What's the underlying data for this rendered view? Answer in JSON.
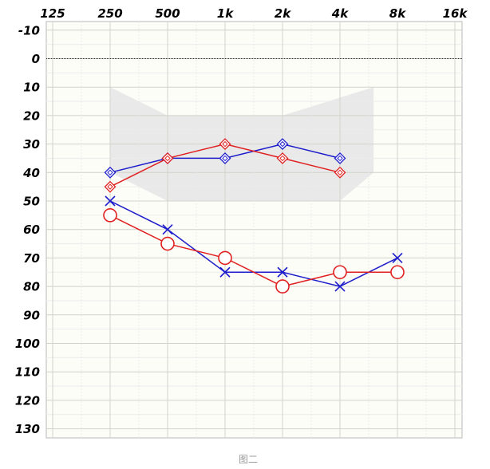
{
  "chart_data": {
    "type": "line",
    "caption": "图二",
    "x_scale": "log2",
    "x_ticks": [
      125,
      250,
      500,
      1000,
      2000,
      4000,
      8000,
      16000
    ],
    "x_tick_labels": [
      "125",
      "250",
      "500",
      "1k",
      "2k",
      "4k",
      "8k",
      "16k"
    ],
    "y_ticks": [
      -10,
      0,
      10,
      20,
      30,
      40,
      50,
      60,
      70,
      80,
      90,
      100,
      110,
      120,
      130
    ],
    "y_tick_labels": [
      "-10",
      "0",
      "10",
      "20",
      "30",
      "40",
      "50",
      "60",
      "70",
      "80",
      "90",
      "100",
      "110",
      "120",
      "130"
    ],
    "ylim": [
      -10,
      130
    ],
    "y_inverted": true,
    "xlim": [
      125,
      16000
    ],
    "grid": true,
    "reference_line_y": 0,
    "shaded_region": [
      {
        "x": 250,
        "y": 10
      },
      {
        "x": 500,
        "y": 20
      },
      {
        "x": 2000,
        "y": 20
      },
      {
        "x": 6000,
        "y": 10
      },
      {
        "x": 6000,
        "y": 40
      },
      {
        "x": 4000,
        "y": 50
      },
      {
        "x": 500,
        "y": 50
      },
      {
        "x": 250,
        "y": 40
      }
    ],
    "series": [
      {
        "marker": "diamond-bracket",
        "color": "#1c1ccc",
        "x": [
          250,
          500,
          1000,
          2000,
          4000
        ],
        "y": [
          40,
          35,
          35,
          30,
          35
        ]
      },
      {
        "marker": "diamond-bracket",
        "color": "#e02020",
        "x": [
          250,
          500,
          1000,
          2000,
          4000
        ],
        "y": [
          45,
          35,
          30,
          35,
          40
        ]
      },
      {
        "marker": "x",
        "color": "#1c1ccc",
        "x": [
          250,
          500,
          1000,
          2000,
          4000,
          8000
        ],
        "y": [
          50,
          60,
          75,
          75,
          80,
          70
        ]
      },
      {
        "marker": "circle",
        "color": "#e02020",
        "x": [
          250,
          500,
          1000,
          2000,
          4000,
          8000
        ],
        "y": [
          55,
          65,
          70,
          80,
          75,
          75
        ]
      }
    ]
  }
}
